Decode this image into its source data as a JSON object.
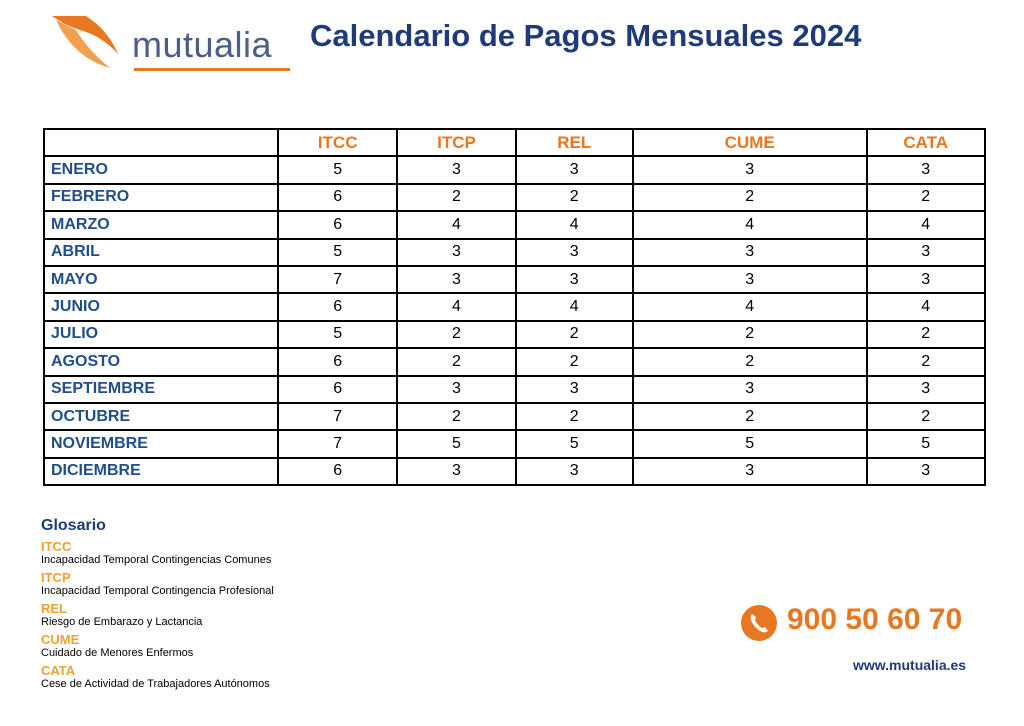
{
  "header": {
    "logo": "mutualia",
    "title": "Calendario de Pagos Mensuales 2024"
  },
  "table": {
    "columns": [
      "ITCC",
      "ITCP",
      "REL",
      "CUME",
      "CATA"
    ],
    "rows": [
      [
        "ENERO",
        5,
        3,
        3,
        3,
        3
      ],
      [
        "FEBRERO",
        6,
        2,
        2,
        2,
        2
      ],
      [
        "MARZO",
        6,
        4,
        4,
        4,
        4
      ],
      [
        "ABRIL",
        5,
        3,
        3,
        3,
        3
      ],
      [
        "MAYO",
        7,
        3,
        3,
        3,
        3
      ],
      [
        "JUNIO",
        6,
        4,
        4,
        4,
        4
      ],
      [
        "JULIO",
        5,
        2,
        2,
        2,
        2
      ],
      [
        "AGOSTO",
        6,
        2,
        2,
        2,
        2
      ],
      [
        "SEPTIEMBRE",
        6,
        3,
        3,
        3,
        3
      ],
      [
        "OCTUBRE",
        7,
        2,
        2,
        2,
        2
      ],
      [
        "NOVIEMBRE",
        7,
        5,
        5,
        5,
        5
      ],
      [
        "DICIEMBRE",
        6,
        3,
        3,
        3,
        3
      ]
    ]
  },
  "glossary": {
    "title": "Glosario",
    "items": [
      {
        "term": "ITCC",
        "definition": "Incapacidad Temporal Contingencias Comunes"
      },
      {
        "term": "ITCP",
        "definition": "Incapacidad Temporal Contingencia Profesional"
      },
      {
        "term": "REL",
        "definition": "Riesgo de Embarazo y Lactancia"
      },
      {
        "term": "CUME",
        "definition": "Cuidado de Menores Enfermos"
      },
      {
        "term": "CATA",
        "definition": "Cese de Actividad de Trabajadores Autónomos"
      }
    ]
  },
  "contact": {
    "phone": "900 50 60 70",
    "website": "www.mutualia.es"
  }
}
